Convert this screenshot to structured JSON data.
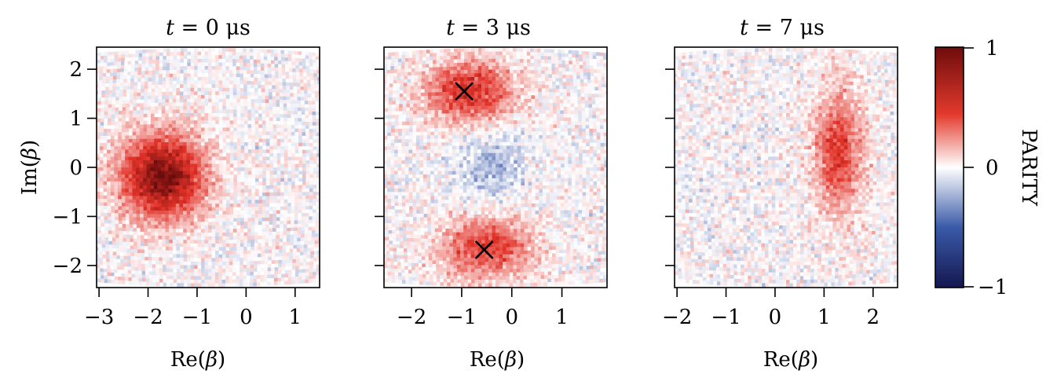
{
  "figure": {
    "colorbar": {
      "label": "PARITY",
      "min": -1,
      "max": 1,
      "tick_labels": [
        "1",
        "0",
        "−1"
      ],
      "colors": {
        "low": "#14174f",
        "mid": "#ffffff",
        "high": "#6e0c0c",
        "red": "#d62728",
        "blue": "#2d4ea3"
      }
    },
    "y_axis_label": {
      "prefix": "Im(",
      "symbol": "β",
      "suffix": ")"
    }
  },
  "chart_data": [
    {
      "type": "heatmap",
      "title": {
        "var": "t",
        "eq": " = ",
        "value": "0",
        "unit": " μs"
      },
      "xlabel": {
        "prefix": "Re(",
        "symbol": "β",
        "suffix": ")"
      },
      "ylabel": "Im(β)",
      "xlim": [
        -3.05,
        1.5
      ],
      "ylim": [
        -2.45,
        2.45
      ],
      "xticks": [
        -3,
        -2,
        -1,
        0,
        1
      ],
      "xtick_labels": [
        "−3",
        "−2",
        "−1",
        "0",
        "1"
      ],
      "yticks": [
        2,
        1,
        0,
        -1,
        -2
      ],
      "ytick_labels": [
        "2",
        "1",
        "0",
        "−1",
        "−2"
      ],
      "features": [
        {
          "kind": "blob",
          "x": -1.7,
          "y": -0.2,
          "sx": 0.6,
          "sy": 0.6,
          "amp": 0.95
        }
      ],
      "markers": []
    },
    {
      "type": "heatmap",
      "title": {
        "var": "t",
        "eq": " = ",
        "value": "3",
        "unit": " μs"
      },
      "xlabel": {
        "prefix": "Re(",
        "symbol": "β",
        "suffix": ")"
      },
      "ylabel": "",
      "xlim": [
        -2.55,
        1.9
      ],
      "ylim": [
        -2.45,
        2.45
      ],
      "xticks": [
        -2,
        -1,
        0,
        1
      ],
      "xtick_labels": [
        "−2",
        "−1",
        "0",
        "1"
      ],
      "yticks": [
        2,
        1,
        0,
        -1,
        -2
      ],
      "ytick_labels": [],
      "features": [
        {
          "kind": "blob",
          "x": -0.85,
          "y": 1.55,
          "sx": 0.65,
          "sy": 0.45,
          "amp": 0.6
        },
        {
          "kind": "blob",
          "x": -0.5,
          "y": -1.65,
          "sx": 0.65,
          "sy": 0.45,
          "amp": 0.55
        },
        {
          "kind": "blob",
          "x": -0.4,
          "y": 0.0,
          "sx": 0.5,
          "sy": 0.5,
          "amp": -0.22
        }
      ],
      "markers": [
        {
          "x": -0.95,
          "y": 1.55,
          "label": "×"
        },
        {
          "x": -0.55,
          "y": -1.68,
          "label": "×"
        }
      ]
    },
    {
      "type": "heatmap",
      "title": {
        "var": "t",
        "eq": " = ",
        "value": "7",
        "unit": " μs"
      },
      "xlabel": {
        "prefix": "Re(",
        "symbol": "β",
        "suffix": ")"
      },
      "ylabel": "",
      "xlim": [
        -2.05,
        2.5
      ],
      "ylim": [
        -2.45,
        2.45
      ],
      "xticks": [
        -2,
        -1,
        0,
        1,
        2
      ],
      "xtick_labels": [
        "−2",
        "−1",
        "0",
        "1",
        "2"
      ],
      "yticks": [
        2,
        1,
        0,
        -1,
        -2
      ],
      "ytick_labels": [],
      "features": [
        {
          "kind": "blob",
          "x": 1.3,
          "y": 0.35,
          "sx": 0.35,
          "sy": 0.9,
          "amp": 0.55
        }
      ],
      "markers": []
    }
  ]
}
